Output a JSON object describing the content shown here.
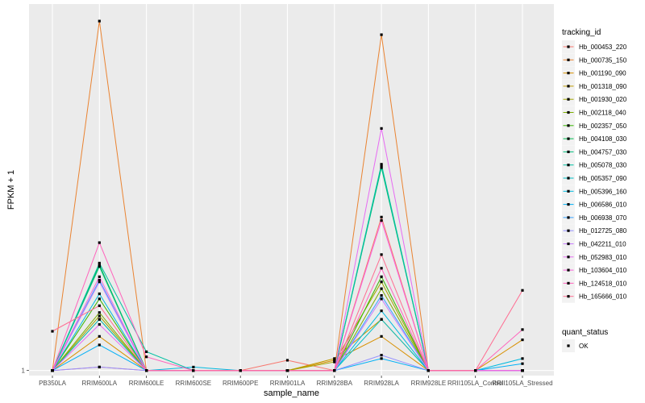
{
  "chart_data": {
    "type": "line",
    "xlabel": "sample_name",
    "ylabel": "FPKM + 1",
    "y_tick_labels": [
      "1"
    ],
    "y_tick_values": [
      1
    ],
    "ylim": [
      0.97,
      3.15
    ],
    "grid": true,
    "legend_placement": "right",
    "categories": [
      "PB350LA",
      "RRIM600LA",
      "RRIM600LE",
      "RRIM600SE",
      "RRIM600PE",
      "RRIM901LA",
      "RRIM928BA",
      "RRIM928LA",
      "RRIM928LE",
      "RRII105LA_Control",
      "RRII105LA_Stressed"
    ],
    "legend_title": "tracking_id",
    "series": [
      {
        "name": "Hb_000453_220",
        "color": "#F8766D",
        "values": [
          1.0,
          1.02,
          1.0,
          1.0,
          1.0,
          1.06,
          1.0,
          1.9,
          1.0,
          1.0,
          1.0
        ]
      },
      {
        "name": "Hb_000735_150",
        "color": "#EA8331",
        "values": [
          1.0,
          3.05,
          1.0,
          1.0,
          1.0,
          1.0,
          1.0,
          2.97,
          1.0,
          1.0,
          1.0
        ]
      },
      {
        "name": "Hb_001190_090",
        "color": "#D89000",
        "values": [
          1.0,
          1.2,
          1.0,
          1.0,
          1.0,
          1.0,
          1.06,
          1.2,
          1.0,
          1.0,
          1.18
        ]
      },
      {
        "name": "Hb_001318_090",
        "color": "#C09B00",
        "values": [
          1.0,
          1.3,
          1.0,
          1.0,
          1.0,
          1.0,
          1.07,
          1.3,
          1.0,
          1.0,
          1.0
        ]
      },
      {
        "name": "Hb_001930_020",
        "color": "#A3A500",
        "values": [
          1.0,
          1.32,
          1.0,
          1.0,
          1.0,
          1.0,
          1.05,
          1.52,
          1.0,
          1.0,
          1.0
        ]
      },
      {
        "name": "Hb_002118_040",
        "color": "#7CAE00",
        "values": [
          1.0,
          1.34,
          1.0,
          1.0,
          1.0,
          1.0,
          1.0,
          1.48,
          1.0,
          1.0,
          1.0
        ]
      },
      {
        "name": "Hb_002357_050",
        "color": "#39B600",
        "values": [
          1.0,
          1.42,
          1.0,
          1.0,
          1.0,
          1.0,
          1.0,
          1.55,
          1.0,
          1.0,
          1.0
        ]
      },
      {
        "name": "Hb_004108_030",
        "color": "#00BB4E",
        "values": [
          1.0,
          1.62,
          1.0,
          1.0,
          1.0,
          1.0,
          1.0,
          2.2,
          1.0,
          1.0,
          1.0
        ]
      },
      {
        "name": "Hb_004757_030",
        "color": "#00BF7D",
        "values": [
          1.0,
          1.61,
          1.0,
          1.0,
          1.0,
          1.0,
          1.0,
          2.19,
          1.0,
          1.0,
          1.0
        ]
      },
      {
        "name": "Hb_005078_030",
        "color": "#00C1A3",
        "values": [
          1.0,
          1.63,
          1.11,
          1.0,
          1.0,
          1.0,
          1.0,
          2.21,
          1.0,
          1.0,
          1.0
        ]
      },
      {
        "name": "Hb_005357_090",
        "color": "#00BFC4",
        "values": [
          1.0,
          1.3,
          1.0,
          1.0,
          1.0,
          1.0,
          1.0,
          1.3,
          1.0,
          1.0,
          1.0
        ]
      },
      {
        "name": "Hb_005396_160",
        "color": "#00BAE0",
        "values": [
          1.0,
          1.45,
          1.0,
          1.02,
          1.0,
          1.0,
          1.0,
          1.35,
          1.0,
          1.0,
          1.07
        ]
      },
      {
        "name": "Hb_006586_010",
        "color": "#00B0F6",
        "values": [
          1.0,
          1.15,
          1.0,
          1.0,
          1.0,
          1.0,
          1.0,
          1.07,
          1.0,
          1.0,
          1.04
        ]
      },
      {
        "name": "Hb_006938_070",
        "color": "#35A2FF",
        "values": [
          1.0,
          1.53,
          1.0,
          1.0,
          1.0,
          1.0,
          1.0,
          1.44,
          1.0,
          1.0,
          1.0
        ]
      },
      {
        "name": "Hb_012725_080",
        "color": "#9590FF",
        "values": [
          1.0,
          1.02,
          1.0,
          1.0,
          1.0,
          1.0,
          1.0,
          1.09,
          1.0,
          1.0,
          1.0
        ]
      },
      {
        "name": "Hb_042211_010",
        "color": "#C77CFF",
        "values": [
          1.0,
          1.52,
          1.0,
          1.0,
          1.0,
          1.0,
          1.0,
          1.42,
          1.0,
          1.0,
          1.0
        ]
      },
      {
        "name": "Hb_052983_010",
        "color": "#E76BF3",
        "values": [
          1.0,
          1.27,
          1.0,
          1.0,
          1.0,
          1.0,
          1.0,
          2.42,
          1.0,
          1.0,
          1.0
        ]
      },
      {
        "name": "Hb_103604_010",
        "color": "#FA62DB",
        "values": [
          1.0,
          1.55,
          1.0,
          1.0,
          1.0,
          1.0,
          1.0,
          1.88,
          1.0,
          1.0,
          1.0
        ]
      },
      {
        "name": "Hb_124518_010",
        "color": "#FF62BC",
        "values": [
          1.0,
          1.75,
          1.08,
          1.0,
          1.0,
          1.0,
          1.0,
          1.6,
          1.0,
          1.0,
          1.24
        ]
      },
      {
        "name": "Hb_165666_010",
        "color": "#FF6C91",
        "values": [
          1.23,
          1.38,
          1.0,
          1.0,
          1.0,
          1.0,
          1.0,
          1.68,
          1.0,
          1.0,
          1.47
        ]
      }
    ],
    "shape_legend_title": "quant_status",
    "shape_legend_entries": [
      "OK"
    ]
  },
  "colors": {
    "panel_background": "#EBEBEB",
    "grid_major": "#FFFFFF",
    "point": "#000000"
  }
}
